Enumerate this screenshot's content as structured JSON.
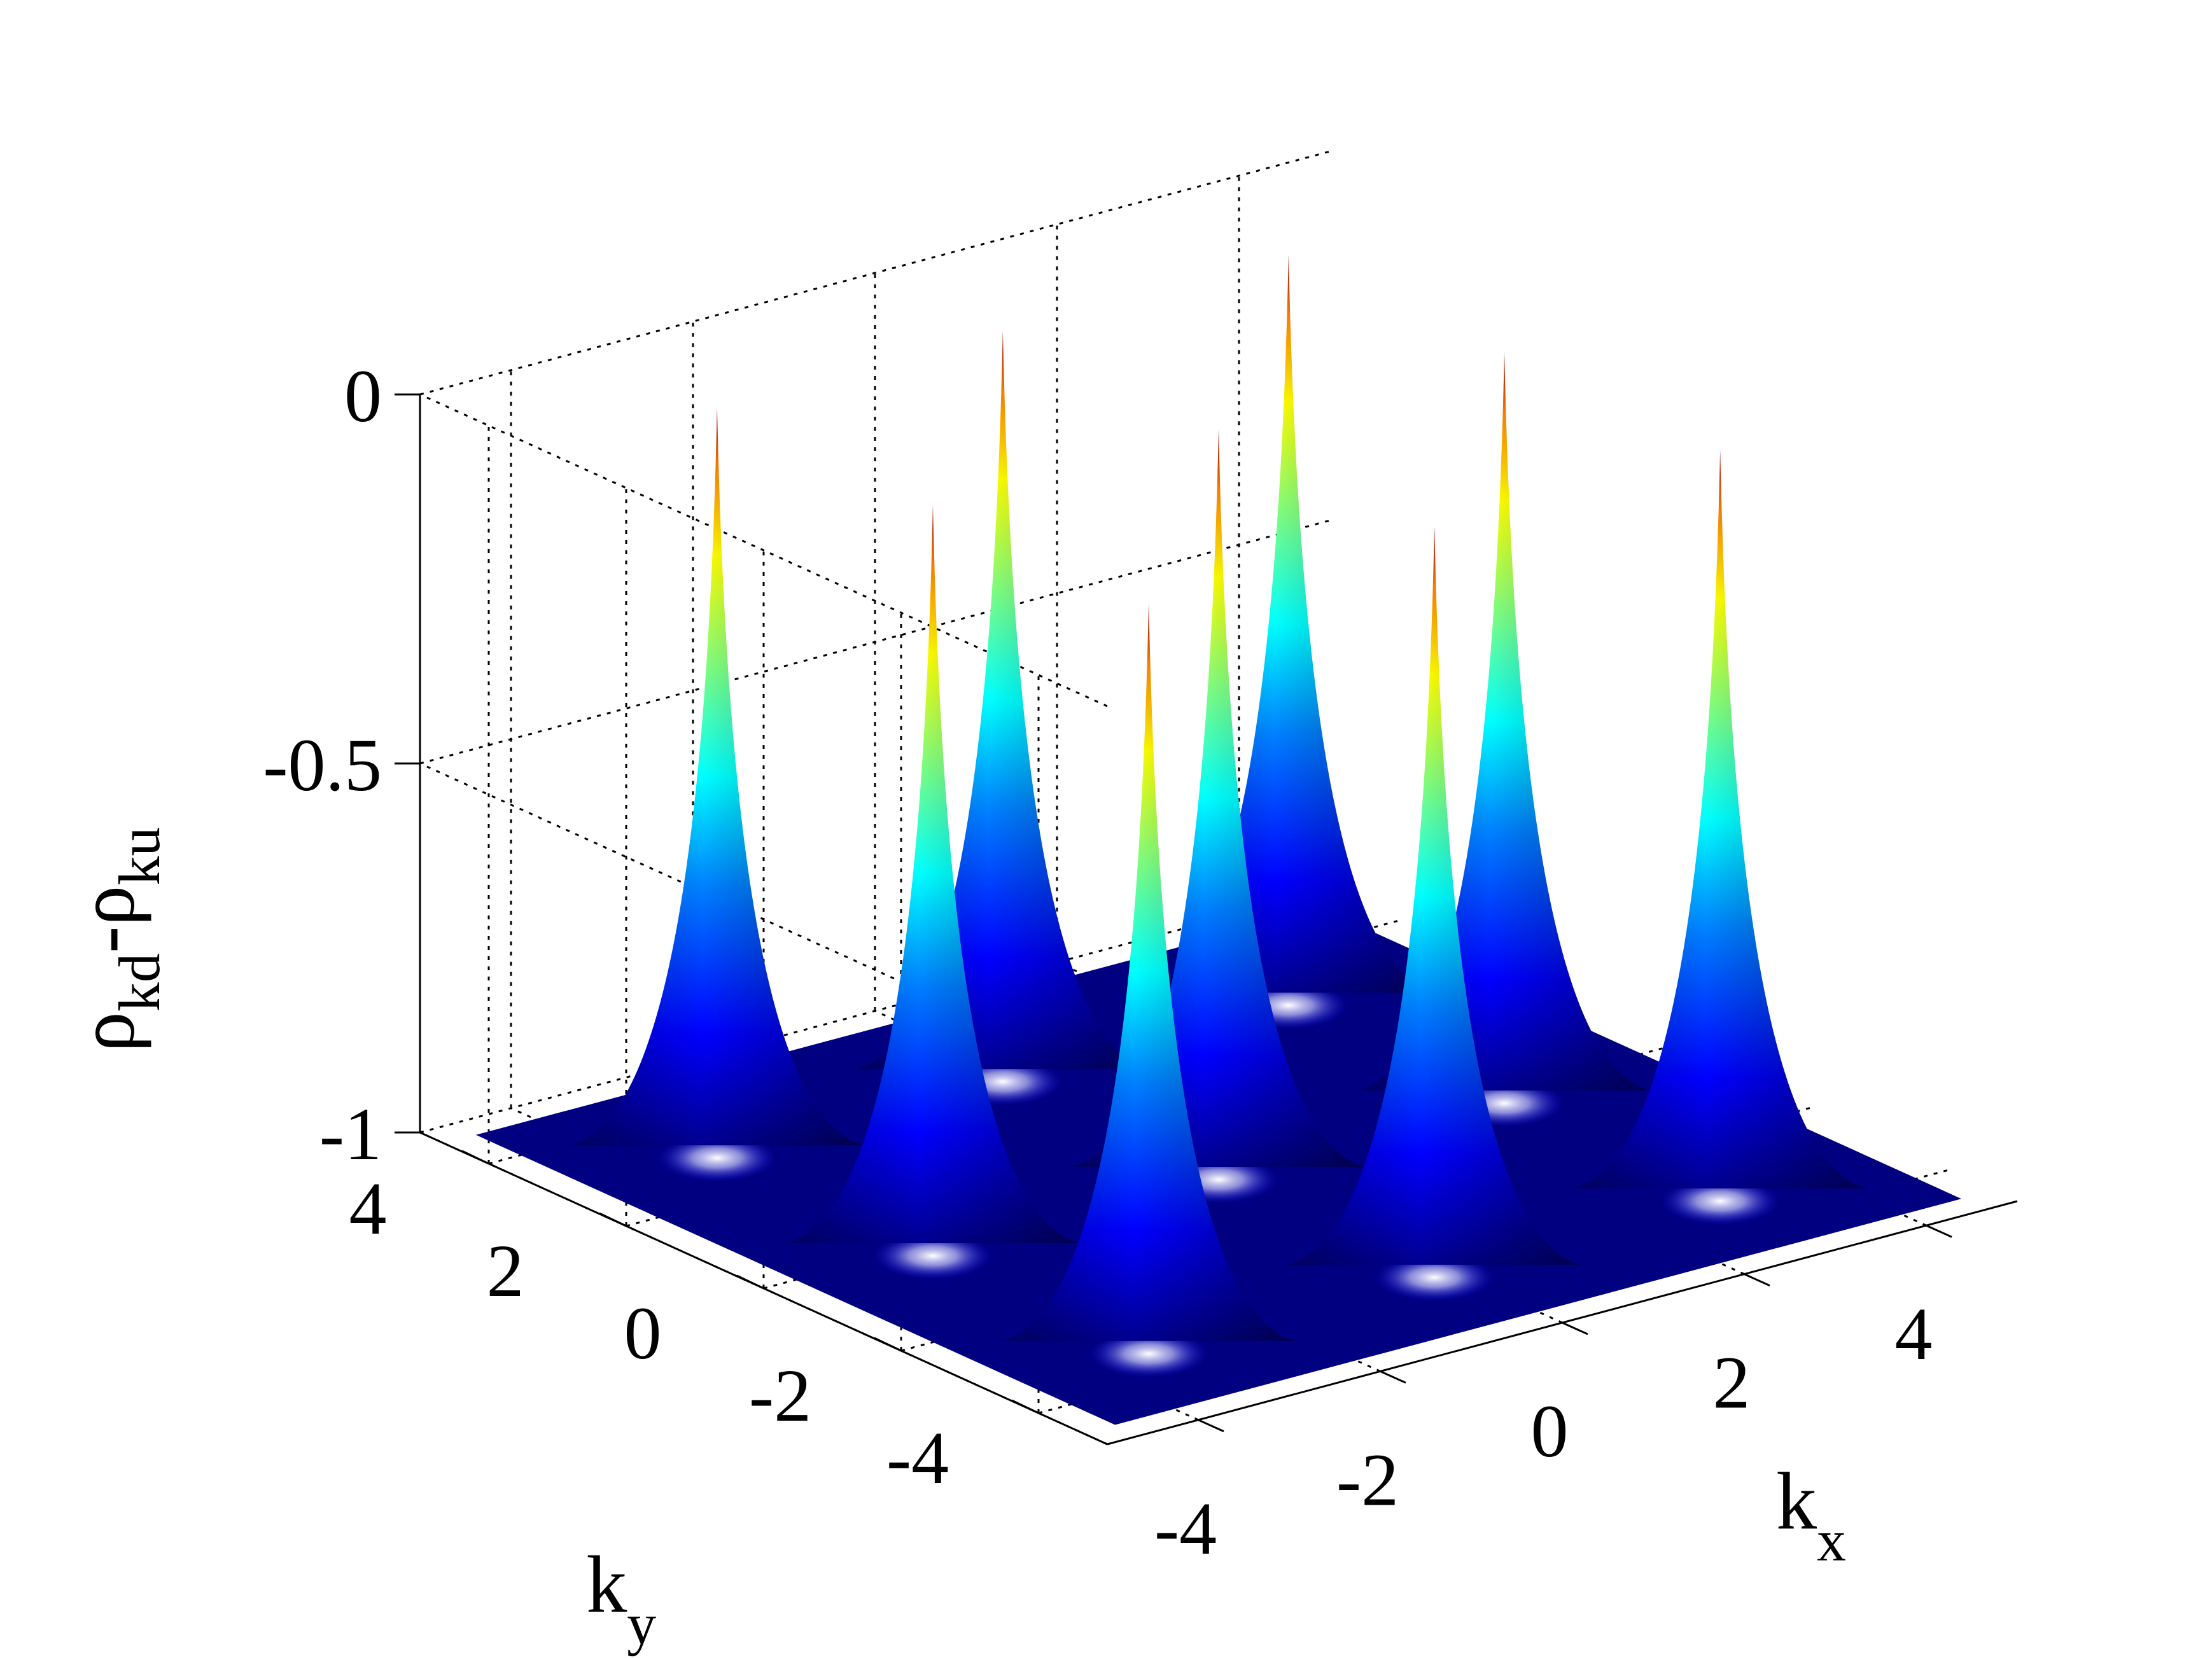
{
  "chart_data": {
    "type": "surface",
    "title": "",
    "x_axis": {
      "label": "k",
      "label_sub": "x",
      "ticks": [
        -4,
        -2,
        0,
        2,
        4
      ],
      "range": [
        -5,
        5
      ]
    },
    "y_axis": {
      "label": "k",
      "label_sub": "y",
      "ticks": [
        -4,
        -2,
        0,
        2,
        4
      ],
      "range": [
        -5,
        5
      ]
    },
    "z_axis": {
      "label_parts": [
        "ρ",
        "kd",
        "-ρ",
        "ku"
      ],
      "ticks": [
        -1,
        -0.5,
        0
      ],
      "tick_labels": [
        "-1",
        "-0.5",
        "0"
      ],
      "range": [
        -1,
        0
      ]
    },
    "grid": true,
    "colormap": "jet",
    "baseline_value": -1,
    "peak_value": 0,
    "peaks_kx_ky": [
      [
        -3.14,
        -3.14
      ],
      [
        -3.14,
        0
      ],
      [
        -3.14,
        3.14
      ],
      [
        0,
        -3.14
      ],
      [
        0,
        0
      ],
      [
        0,
        3.14
      ],
      [
        3.14,
        -3.14
      ],
      [
        3.14,
        0
      ],
      [
        3.14,
        3.14
      ]
    ]
  }
}
